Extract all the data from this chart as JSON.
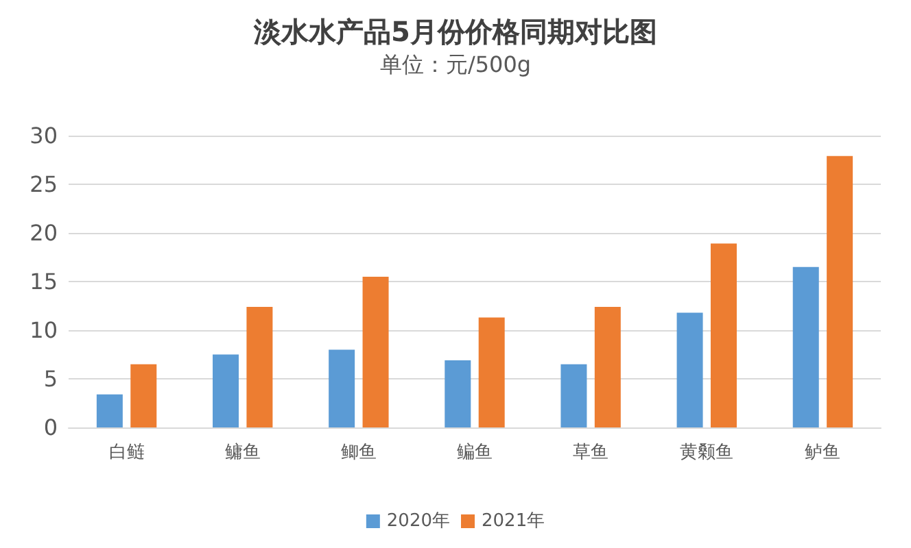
{
  "chart_data": {
    "type": "bar",
    "title": "淡水水产品5月份价格同期对比图",
    "subtitle": "单位：元/500g",
    "categories": [
      "白鲢",
      "鳙鱼",
      "鲫鱼",
      "鳊鱼",
      "草鱼",
      "黄颡鱼",
      "鲈鱼"
    ],
    "series": [
      {
        "name": "2020年",
        "color": "#5b9bd5",
        "values": [
          3.4,
          7.5,
          8.0,
          6.9,
          6.5,
          11.8,
          16.5
        ]
      },
      {
        "name": "2021年",
        "color": "#ed7d31",
        "values": [
          6.5,
          12.4,
          15.5,
          11.3,
          12.4,
          18.9,
          27.9
        ]
      }
    ],
    "ylim": [
      0,
      30
    ],
    "yticks": [
      0,
      5,
      10,
      15,
      20,
      25,
      30
    ],
    "grid": "y",
    "legend": "bottom"
  }
}
